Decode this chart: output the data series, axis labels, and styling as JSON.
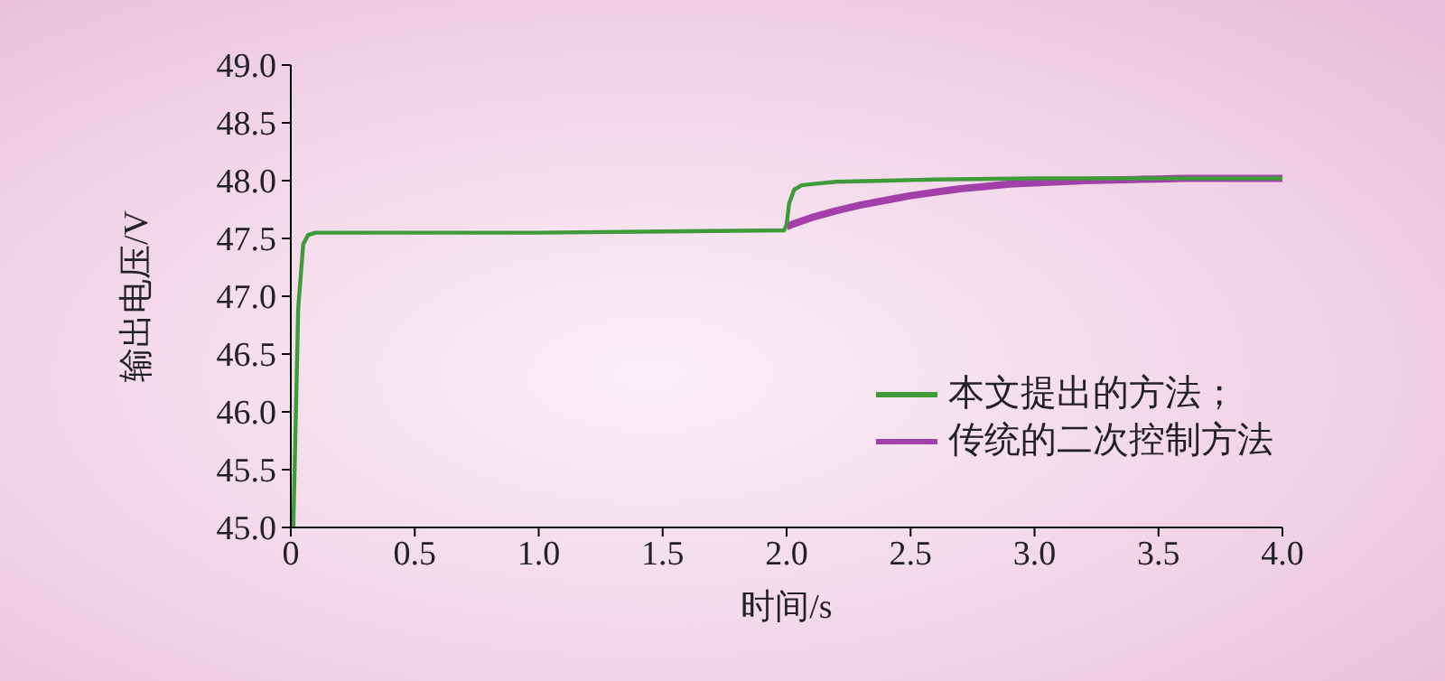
{
  "chart_data": {
    "type": "line",
    "xlabel": "时间/s",
    "ylabel": "输出电压/V",
    "xlim": [
      0,
      4
    ],
    "xticks": [
      {
        "value": 0,
        "label": "0"
      },
      {
        "value": 0.5,
        "label": "0.5"
      },
      {
        "value": 1,
        "label": "1.0"
      },
      {
        "value": 1.5,
        "label": "1.5"
      },
      {
        "value": 2,
        "label": "2.0"
      },
      {
        "value": 2.5,
        "label": "2.5"
      },
      {
        "value": 3,
        "label": "3.0"
      },
      {
        "value": 3.5,
        "label": "3.5"
      },
      {
        "value": 4,
        "label": "4.0"
      }
    ],
    "ylim": [
      45,
      49
    ],
    "yticks": [
      {
        "value": 45,
        "label": "45.0"
      },
      {
        "value": 45.5,
        "label": "45.5"
      },
      {
        "value": 46,
        "label": "46.0"
      },
      {
        "value": 46.5,
        "label": "46.5"
      },
      {
        "value": 47,
        "label": "47.0"
      },
      {
        "value": 47.5,
        "label": "47.5"
      },
      {
        "value": 48,
        "label": "48.0"
      },
      {
        "value": 48.5,
        "label": "48.5"
      },
      {
        "value": 49,
        "label": "49.0"
      }
    ],
    "grid": false,
    "legend": "bottom right",
    "marker": "none",
    "line_style": "solid",
    "series": [
      {
        "name": "本文提出的方法；",
        "color": "#3f9a3a",
        "x": [
          0.01,
          0.03,
          0.05,
          0.07,
          0.1,
          0.5,
          1,
          1.5,
          1.99,
          2.0,
          2.01,
          2.03,
          2.06,
          2.1,
          2.2,
          2.4,
          2.6,
          3.0,
          3.5,
          4.0
        ],
        "values": [
          45,
          46.9,
          47.45,
          47.53,
          47.55,
          47.55,
          47.55,
          47.56,
          47.57,
          47.62,
          47.8,
          47.92,
          47.96,
          47.97,
          47.99,
          48.0,
          48.01,
          48.02,
          48.02,
          48.02
        ]
      },
      {
        "name": "传统的二次控制方法",
        "color": "#a040a8",
        "x": [
          2.0,
          2.02,
          2.1,
          2.2,
          2.3,
          2.4,
          2.5,
          2.6,
          2.7,
          2.8,
          2.9,
          3.0,
          3.2,
          3.4,
          3.6,
          4.0
        ],
        "values": [
          47.6,
          47.62,
          47.68,
          47.74,
          47.79,
          47.83,
          47.87,
          47.9,
          47.93,
          47.95,
          47.97,
          47.98,
          48.0,
          48.01,
          48.02,
          48.02
        ]
      }
    ]
  }
}
